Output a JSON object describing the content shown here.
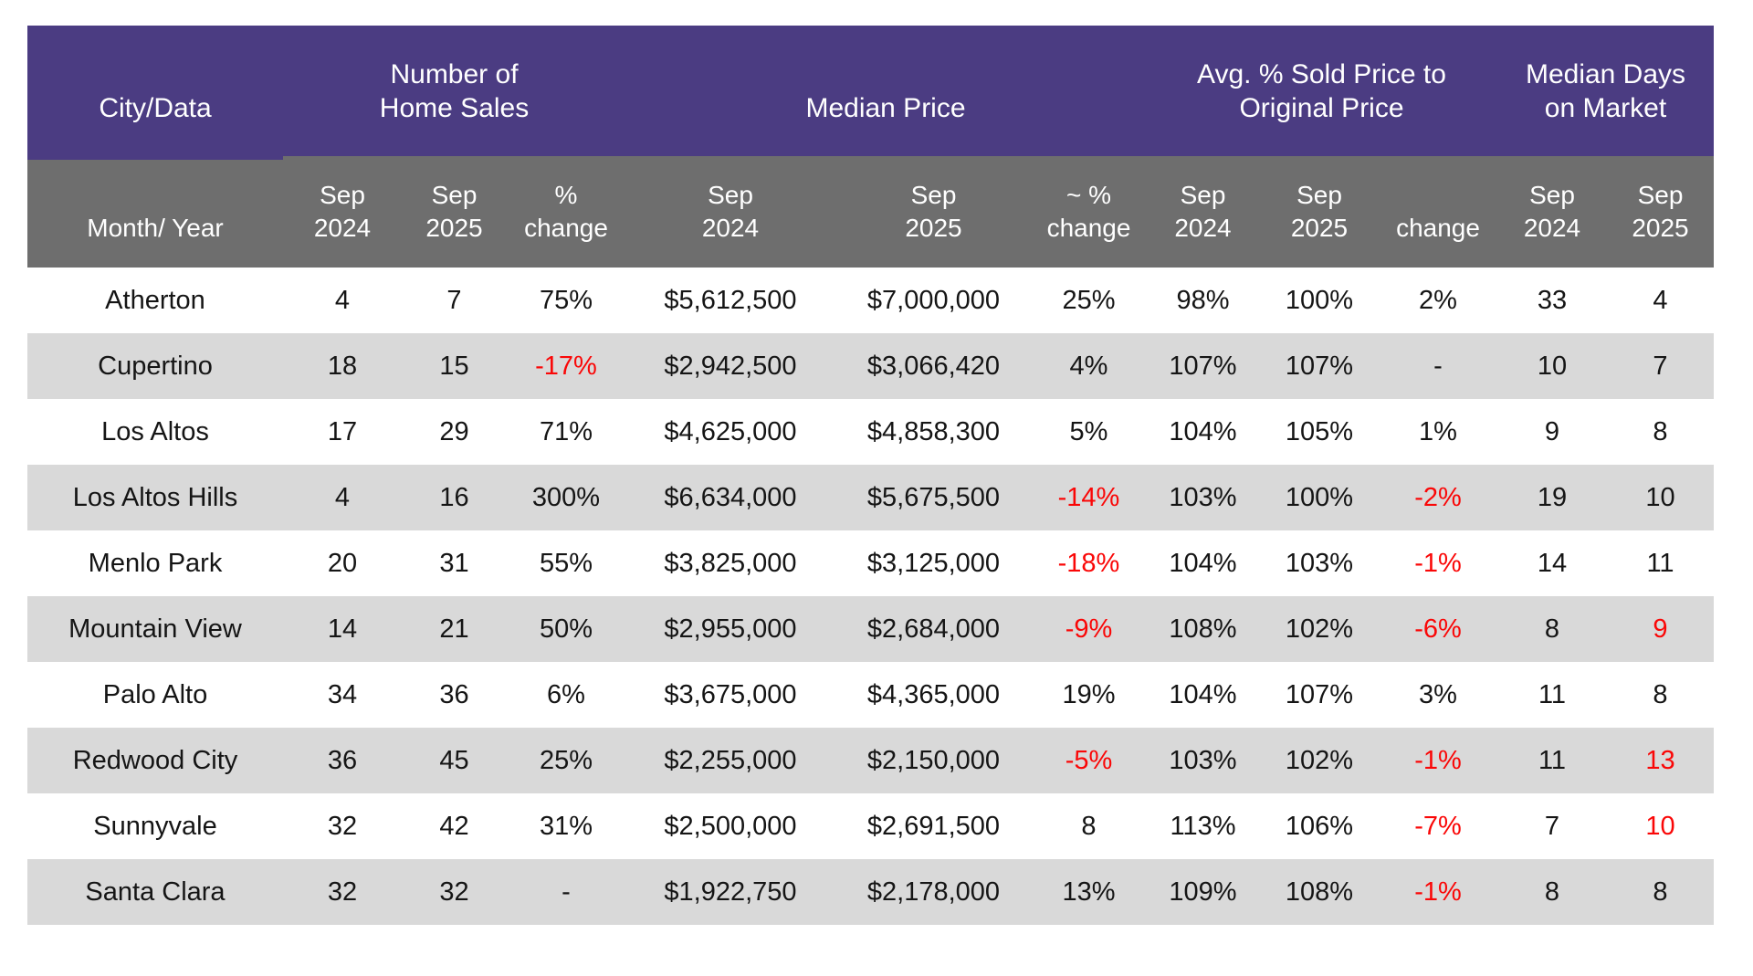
{
  "ui": {
    "colors": {
      "header_purple": "#4B3C82",
      "subheader_gray": "#6E6E6E",
      "row_stripe_gray": "#D9D9D9",
      "negative_red": "#FA0707",
      "text": "#151515"
    },
    "header_groups": [
      {
        "id": "city-data",
        "line1": "",
        "line2": "City/Data",
        "span": 1
      },
      {
        "id": "number-of-home-sales",
        "line1": "Number of",
        "line2": "Home Sales",
        "span": 3
      },
      {
        "id": "median-price",
        "line1": "",
        "line2": "Median Price",
        "span": 3
      },
      {
        "id": "avg-pct-sold-to-original",
        "line1": "Avg. % Sold Price to",
        "line2": "Original Price",
        "span": 3
      },
      {
        "id": "median-days-on-market",
        "line1": "Median Days",
        "line2": "on Market",
        "span": 2
      }
    ],
    "subheaders": [
      {
        "id": "month-year",
        "line1": "",
        "line2": "Month/ Year"
      },
      {
        "id": "sales-sep-2024",
        "line1": "Sep",
        "line2": "2024"
      },
      {
        "id": "sales-sep-2025",
        "line1": "Sep",
        "line2": "2025"
      },
      {
        "id": "sales-pct-change",
        "line1": "%",
        "line2": "change"
      },
      {
        "id": "price-sep-2024",
        "line1": "Sep",
        "line2": "2024"
      },
      {
        "id": "price-sep-2025",
        "line1": "Sep",
        "line2": "2025"
      },
      {
        "id": "price-pct-change",
        "line1": "~ %",
        "line2": "change"
      },
      {
        "id": "ratio-sep-2024",
        "line1": "Sep",
        "line2": "2024"
      },
      {
        "id": "ratio-sep-2025",
        "line1": "Sep",
        "line2": "2025"
      },
      {
        "id": "ratio-change",
        "line1": "",
        "line2": "change"
      },
      {
        "id": "days-sep-2024",
        "line1": "Sep",
        "line2": "2024"
      },
      {
        "id": "days-sep-2025",
        "line1": "Sep",
        "line2": "2025"
      }
    ],
    "red_cells": [
      [],
      [
        3
      ],
      [],
      [
        6,
        9
      ],
      [
        6,
        9
      ],
      [
        6,
        9,
        11
      ],
      [],
      [
        6,
        9,
        11
      ],
      [
        9,
        11
      ],
      [
        9
      ]
    ]
  },
  "chart_data": {
    "type": "table",
    "title": "",
    "column_groups": [
      "City/Data",
      "Number of Home Sales",
      "Median Price",
      "Avg. % Sold Price to Original Price",
      "Median Days on Market"
    ],
    "columns": [
      "City (Month/ Year)",
      "Home Sales Sep 2024",
      "Home Sales Sep 2025",
      "Home Sales % change",
      "Median Price Sep 2024",
      "Median Price Sep 2025",
      "Median Price ~ % change",
      "Sold/Original Sep 2024",
      "Sold/Original Sep 2025",
      "Sold/Original change",
      "Days on Market Sep 2024",
      "Days on Market Sep 2025"
    ],
    "rows": [
      [
        "Atherton",
        "4",
        "7",
        "75%",
        "$5,612,500",
        "$7,000,000",
        "25%",
        "98%",
        "100%",
        "2%",
        "33",
        "4"
      ],
      [
        "Cupertino",
        "18",
        "15",
        "-17%",
        "$2,942,500",
        "$3,066,420",
        "4%",
        "107%",
        "107%",
        "-",
        "10",
        "7"
      ],
      [
        "Los Altos",
        "17",
        "29",
        "71%",
        "$4,625,000",
        "$4,858,300",
        "5%",
        "104%",
        "105%",
        "1%",
        "9",
        "8"
      ],
      [
        "Los Altos Hills",
        "4",
        "16",
        "300%",
        "$6,634,000",
        "$5,675,500",
        "-14%",
        "103%",
        "100%",
        "-2%",
        "19",
        "10"
      ],
      [
        "Menlo Park",
        "20",
        "31",
        "55%",
        "$3,825,000",
        "$3,125,000",
        "-18%",
        "104%",
        "103%",
        "-1%",
        "14",
        "11"
      ],
      [
        "Mountain View",
        "14",
        "21",
        "50%",
        "$2,955,000",
        "$2,684,000",
        "-9%",
        "108%",
        "102%",
        "-6%",
        "8",
        "9"
      ],
      [
        "Palo Alto",
        "34",
        "36",
        "6%",
        "$3,675,000",
        "$4,365,000",
        "19%",
        "104%",
        "107%",
        "3%",
        "11",
        "8"
      ],
      [
        "Redwood City",
        "36",
        "45",
        "25%",
        "$2,255,000",
        "$2,150,000",
        "-5%",
        "103%",
        "102%",
        "-1%",
        "11",
        "13"
      ],
      [
        "Sunnyvale",
        "32",
        "42",
        "31%",
        "$2,500,000",
        "$2,691,500",
        "8",
        "113%",
        "106%",
        "-7%",
        "7",
        "10"
      ],
      [
        "Santa Clara",
        "32",
        "32",
        "-",
        "$1,922,750",
        "$2,178,000",
        "13%",
        "109%",
        "108%",
        "-1%",
        "8",
        "8"
      ]
    ]
  }
}
